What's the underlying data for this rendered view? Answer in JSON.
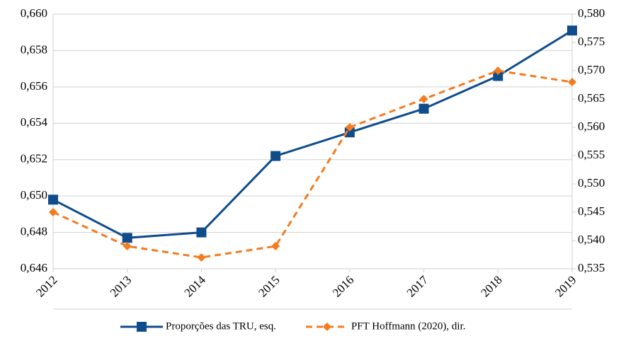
{
  "chart_data": {
    "type": "line",
    "categories": [
      "2012",
      "2013",
      "2014",
      "2015",
      "2016",
      "2017",
      "2018",
      "2019"
    ],
    "series": [
      {
        "name": "Proporções das TRU, esq.",
        "color": "#0f4c8c",
        "marker": "square",
        "dashed": false,
        "values": [
          0.6498,
          0.6477,
          0.648,
          0.6522,
          0.6535,
          0.6548,
          0.6566,
          0.6591
        ]
      },
      {
        "name": "PFT Hoffmann (2020), dir.",
        "color": "#f47b20",
        "marker": "diamond",
        "dashed": true,
        "axis": "y2",
        "values": [
          0.545,
          0.539,
          0.537,
          0.539,
          0.56,
          0.565,
          0.57,
          0.568
        ]
      }
    ],
    "ylim": [
      0.646,
      0.66
    ],
    "yticks": [
      {
        "value": 0.646,
        "label": "0,646"
      },
      {
        "value": 0.648,
        "label": "0,648"
      },
      {
        "value": 0.65,
        "label": "0,650"
      },
      {
        "value": 0.652,
        "label": "0,652"
      },
      {
        "value": 0.654,
        "label": "0,654"
      },
      {
        "value": 0.656,
        "label": "0,656"
      },
      {
        "value": 0.658,
        "label": "0,658"
      },
      {
        "value": 0.66,
        "label": "0,660"
      }
    ],
    "y2lim": [
      0.535,
      0.58
    ],
    "y2ticks": [
      {
        "value": 0.535,
        "label": "0,535"
      },
      {
        "value": 0.54,
        "label": "0,540"
      },
      {
        "value": 0.545,
        "label": "0,545"
      },
      {
        "value": 0.55,
        "label": "0,550"
      },
      {
        "value": 0.555,
        "label": "0,555"
      },
      {
        "value": 0.56,
        "label": "0,560"
      },
      {
        "value": 0.565,
        "label": "0,565"
      },
      {
        "value": 0.57,
        "label": "0,570"
      },
      {
        "value": 0.575,
        "label": "0,575"
      },
      {
        "value": 0.58,
        "label": "0,580"
      }
    ],
    "grid": true,
    "legend": "bottom"
  }
}
